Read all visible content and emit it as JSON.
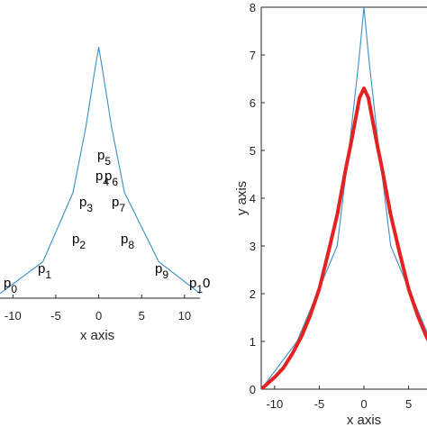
{
  "colors": {
    "polyline": "#3b8fc6",
    "curve": "#e32322",
    "axis": "#262626",
    "background": "#ffffff"
  },
  "chart_data": [
    {
      "type": "line",
      "title": "",
      "xlabel": "x axis",
      "ylabel": "",
      "xlim": [
        -11.5,
        11.8
      ],
      "ylim": [
        0,
        8
      ],
      "xticks": [
        -10,
        -5,
        0,
        5,
        10
      ],
      "grid": false,
      "series": [
        {
          "x": [
            -11.5,
            -6.5,
            -3,
            -1.5,
            -0.5,
            0,
            0.5,
            1.5,
            3,
            7,
            11.8
          ],
          "y": [
            0.13,
            1.0,
            2.9,
            4.7,
            6.2,
            6.9,
            6.2,
            4.7,
            2.9,
            1.0,
            0.13
          ]
        }
      ],
      "annotations": [
        "p",
        "p",
        "p",
        "p",
        "p",
        "p",
        "p",
        "p",
        "p",
        "p",
        "p"
      ],
      "annotation_subscripts": [
        "0",
        "1",
        "2",
        "3",
        "4",
        "5",
        "6",
        "7",
        "8",
        "9",
        "1"
      ],
      "annotation_suffix": "0"
    },
    {
      "type": "line",
      "title": "",
      "xlabel": "x axis",
      "ylabel": "y axis",
      "xlim": [
        -11.5,
        12.5
      ],
      "ylim": [
        0,
        8
      ],
      "xticks": [
        -10,
        -5,
        0,
        5
      ],
      "yticks": [
        0,
        1,
        2,
        3,
        4,
        5,
        6,
        7,
        8
      ],
      "grid": false,
      "series": [
        {
          "x": [
            -11.5,
            -7.5,
            -3,
            -1.5,
            -0.5,
            0,
            0.5,
            1.5,
            3,
            7.5,
            11.5
          ],
          "y": [
            0,
            1.0,
            3.0,
            5.3,
            7.0,
            8.0,
            7.0,
            5.3,
            3.0,
            1.0,
            0
          ]
        },
        {
          "x": [
            -11.5,
            -10,
            -9,
            -8,
            -7,
            -6,
            -5,
            -4,
            -3,
            -2,
            -1.5,
            -1,
            -0.5,
            0,
            0.5,
            1,
            1.5,
            2,
            3,
            4,
            5,
            6,
            7,
            8,
            9,
            10,
            11.5
          ],
          "y": [
            0.0,
            0.25,
            0.45,
            0.75,
            1.1,
            1.55,
            2.1,
            2.85,
            3.65,
            4.65,
            5.1,
            5.6,
            6.1,
            6.3,
            6.1,
            5.6,
            5.1,
            4.65,
            3.65,
            2.85,
            2.1,
            1.55,
            1.1,
            0.75,
            0.45,
            0.25,
            0.0
          ]
        }
      ]
    }
  ]
}
